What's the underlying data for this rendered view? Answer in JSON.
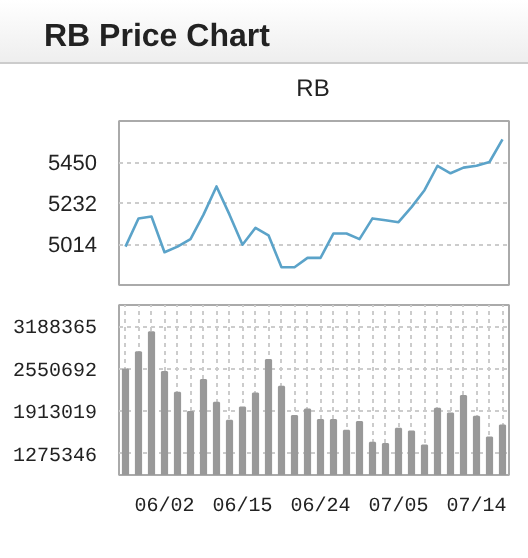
{
  "chart_data": [
    {
      "type": "line",
      "title": "RB Price Chart",
      "subtitle": "RB",
      "categories": [
        null,
        null,
        null,
        null,
        null,
        null,
        null,
        null,
        null,
        null,
        null,
        null,
        null,
        null,
        null,
        null,
        null,
        null,
        null,
        null,
        null,
        null,
        null,
        null,
        null,
        null,
        null,
        null,
        null,
        null
      ],
      "values": [
        5000,
        5150,
        5160,
        4970,
        5000,
        5040,
        5170,
        5320,
        5170,
        5010,
        5100,
        5060,
        4890,
        4890,
        4940,
        4940,
        5070,
        5070,
        5040,
        5150,
        5140,
        5130,
        5210,
        5300,
        5430,
        5390,
        5420,
        5430,
        5450,
        5570
      ],
      "color": "#5ba3c9",
      "ylim": [
        4796,
        5668
      ],
      "yticks": [
        5014,
        5232,
        5450
      ],
      "grid": "y",
      "tick_labels": "y"
    },
    {
      "type": "bar",
      "categories": [
        null,
        null,
        null,
        "06/02",
        null,
        null,
        null,
        null,
        null,
        "06/15",
        null,
        null,
        null,
        null,
        null,
        "06/24",
        null,
        null,
        null,
        null,
        null,
        "07/05",
        null,
        null,
        null,
        null,
        null,
        "07/14",
        null,
        null
      ],
      "values": [
        2540000,
        2800000,
        3100000,
        2500000,
        2190000,
        1900000,
        2380000,
        2040000,
        1770000,
        1970000,
        2180000,
        2680000,
        2280000,
        1840000,
        1940000,
        1780000,
        1780000,
        1620000,
        1750000,
        1440000,
        1420000,
        1650000,
        1610000,
        1400000,
        1950000,
        1880000,
        2140000,
        1830000,
        1520000,
        1700000
      ],
      "color": "#999999",
      "ylim": [
        956509,
        3507020
      ],
      "yticks": [
        1275346,
        1913019,
        2550692,
        3188365
      ],
      "grid": true
    }
  ]
}
